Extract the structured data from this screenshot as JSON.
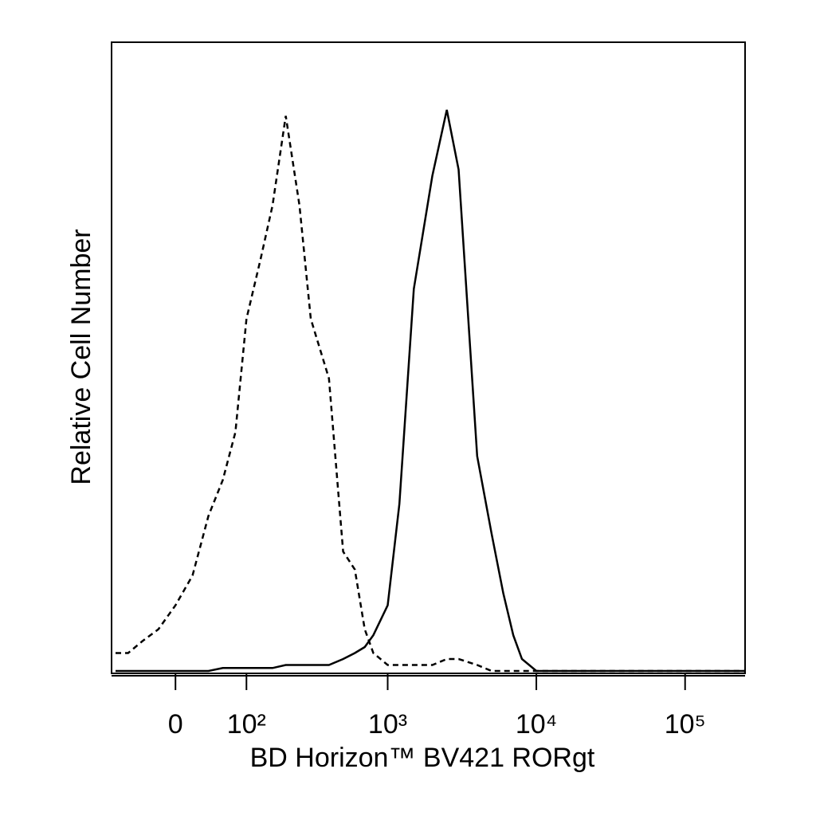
{
  "chart_data": {
    "type": "line",
    "x_label": "BD Horizon™ BV421 RORgt",
    "y_label": "Relative Cell Number",
    "xscale": "biexponential",
    "xlim": [
      -80,
      250000
    ],
    "ylim": [
      0,
      100
    ],
    "xticks": [
      {
        "value": 0,
        "label": "0"
      },
      {
        "value": 100,
        "label": "10²"
      },
      {
        "value": 1000,
        "label": "10³"
      },
      {
        "value": 10000,
        "label": "10⁴"
      },
      {
        "value": 100000,
        "label": "10⁵"
      }
    ],
    "x": [
      -80,
      -60,
      -40,
      -20,
      0,
      20,
      40,
      60,
      80,
      100,
      130,
      160,
      200,
      250,
      300,
      400,
      500,
      600,
      700,
      800,
      1000,
      1200,
      1500,
      2000,
      2500,
      3000,
      4000,
      5000,
      6000,
      7000,
      8000,
      10000,
      15000,
      20000,
      50000,
      100000,
      250000
    ],
    "series": [
      {
        "color": "#000000",
        "dash": true,
        "values": [
          3,
          3,
          5,
          7,
          11,
          16,
          26,
          32,
          40,
          59,
          69,
          78,
          93,
          78,
          59,
          49,
          20,
          17,
          7,
          3,
          1,
          1,
          1,
          1,
          2,
          2,
          1,
          0,
          0,
          0,
          0,
          0,
          0,
          0,
          0,
          0,
          0
        ]
      },
      {
        "color": "#000000",
        "dash": false,
        "values": [
          0,
          0,
          0,
          0,
          0,
          0,
          0,
          0.5,
          0.5,
          0.5,
          0.5,
          0.5,
          1,
          1,
          1,
          1,
          2,
          3,
          4,
          6,
          11,
          28,
          64,
          83,
          94,
          84,
          36,
          23,
          13,
          6,
          2,
          0,
          0,
          0,
          0,
          0,
          0
        ]
      }
    ]
  }
}
